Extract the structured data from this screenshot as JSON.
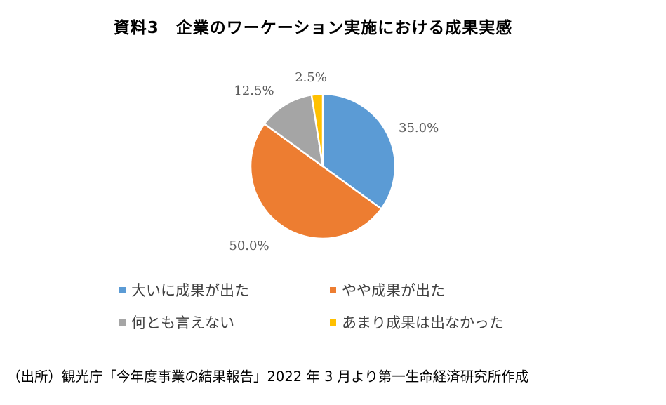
{
  "title": "資料3　企業のワーケーション実施における成果実感",
  "source_note": "（出所）観光庁「今年度事業の結果報告」2022 年 3 月より第一生命経済研究所作成",
  "chart_data": {
    "type": "pie",
    "title": "資料3　企業のワーケーション実施における成果実感",
    "start_angle_deg": 0,
    "direction": "clockwise",
    "legend_position": "bottom",
    "slices": [
      {
        "name": "大いに成果が出た",
        "value": 35.0,
        "label": "35.0%",
        "color": "#5B9BD5"
      },
      {
        "name": "やや成果が出た",
        "value": 50.0,
        "label": "50.0%",
        "color": "#ED7D31"
      },
      {
        "name": "何とも言えない",
        "value": 12.5,
        "label": "12.5%",
        "color": "#A5A5A5"
      },
      {
        "name": "あまり成果は出なかった",
        "value": 2.5,
        "label": "2.5%",
        "color": "#FFC000"
      }
    ]
  }
}
